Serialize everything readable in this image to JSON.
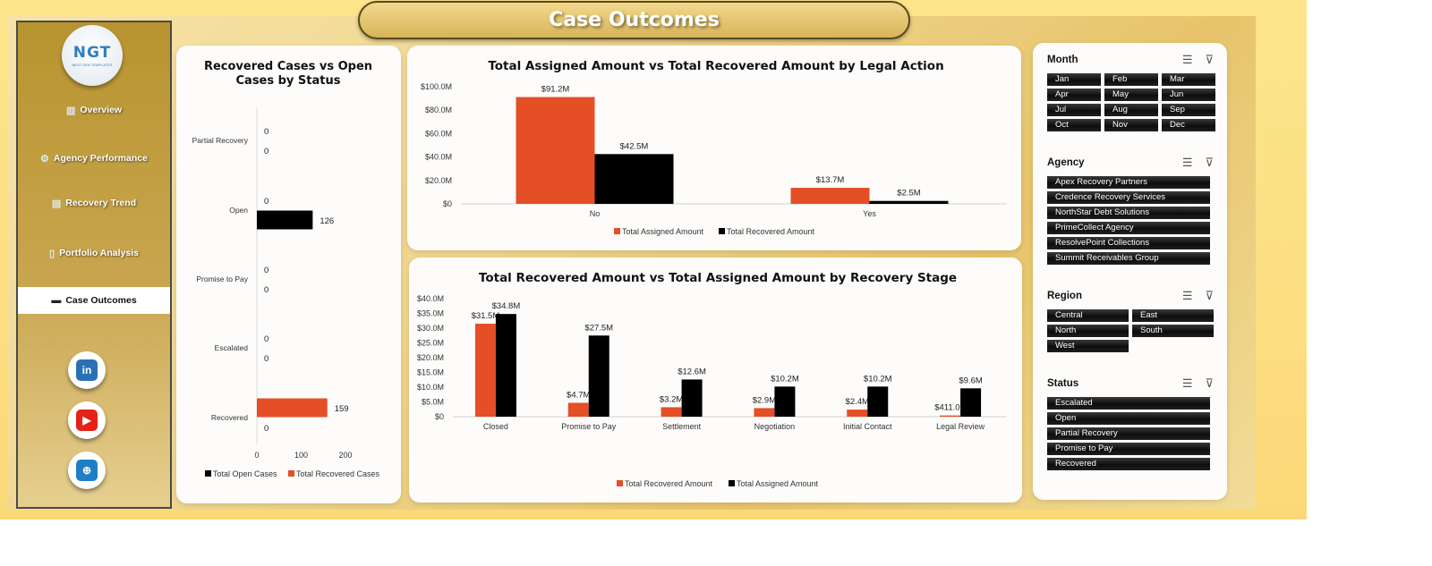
{
  "header": {
    "title": "Case Outcomes"
  },
  "logo": {
    "mark": "NGT",
    "tagline": "NEXT GEN TEMPLATES"
  },
  "sidebar": {
    "items": [
      {
        "label": "Overview",
        "icon": "bar-chart-icon",
        "active": false
      },
      {
        "label": "Agency Performance",
        "icon": "gear-icon",
        "active": false
      },
      {
        "label": "Recovery Trend",
        "icon": "trend-chart-icon",
        "active": false
      },
      {
        "label": "Portfolio Analysis",
        "icon": "document-icon",
        "active": false
      },
      {
        "label": "Case Outcomes",
        "icon": "folder-icon",
        "active": true
      }
    ],
    "social": [
      {
        "name": "linkedin-icon",
        "glyph": "in",
        "color": "#2a70b5"
      },
      {
        "name": "youtube-icon",
        "glyph": "▶",
        "color": "#e62117"
      },
      {
        "name": "website-icon",
        "glyph": "⊕",
        "color": "#1f7fc4"
      }
    ]
  },
  "colors": {
    "orange": "#e44f26",
    "black": "#000000"
  },
  "chart_data": [
    {
      "type": "bar",
      "orientation": "horizontal",
      "title": "Recovered Cases vs Open Cases by Status",
      "categories": [
        "Partial Recovery",
        "Open",
        "Promise to Pay",
        "Escalated",
        "Recovered"
      ],
      "series": [
        {
          "name": "Total Open Cases",
          "color": "#000000",
          "values": [
            0,
            126,
            0,
            0,
            0
          ]
        },
        {
          "name": "Total Recovered Cases",
          "color": "#e44f26",
          "values": [
            0,
            0,
            0,
            0,
            159
          ]
        }
      ],
      "xlim": [
        0,
        200
      ],
      "xticks": [
        "0",
        "100",
        "200"
      ],
      "legend": "bottom"
    },
    {
      "type": "bar",
      "title": "Total Assigned Amount vs Total Recovered Amount by Legal Action",
      "categories": [
        "No",
        "Yes"
      ],
      "series": [
        {
          "name": "Total Assigned Amount",
          "color": "#e44f26",
          "values": [
            91.2,
            13.7
          ],
          "labels": [
            "$91.2M",
            "$13.7M"
          ]
        },
        {
          "name": "Total Recovered Amount",
          "color": "#000000",
          "values": [
            42.5,
            2.5
          ],
          "labels": [
            "$42.5M",
            "$2.5M"
          ]
        }
      ],
      "ylim": [
        0,
        100
      ],
      "yticks": [
        "$0",
        "$20.0M",
        "$40.0M",
        "$60.0M",
        "$80.0M",
        "$100.0M"
      ],
      "legend": "bottom"
    },
    {
      "type": "bar",
      "title": "Total Recovered Amount vs Total Assigned Amount by Recovery Stage",
      "categories": [
        "Closed",
        "Promise to Pay",
        "Settlement",
        "Negotiation",
        "Initial Contact",
        "Legal Review"
      ],
      "series": [
        {
          "name": "Total Recovered Amount",
          "color": "#e44f26",
          "values": [
            31.5,
            4.7,
            3.2,
            2.9,
            2.4,
            0.411
          ],
          "labels": [
            "$31.5M",
            "$4.7M",
            "$3.2M",
            "$2.9M",
            "$2.4M",
            "$411.0K"
          ]
        },
        {
          "name": "Total Assigned Amount",
          "color": "#000000",
          "values": [
            34.8,
            27.5,
            12.6,
            10.2,
            10.2,
            9.6
          ],
          "labels": [
            "$34.8M",
            "$27.5M",
            "$12.6M",
            "$10.2M",
            "$10.2M",
            "$9.6M"
          ]
        }
      ],
      "ylim": [
        0,
        40
      ],
      "yticks": [
        "$0",
        "$5.0M",
        "$10.0M",
        "$15.0M",
        "$20.0M",
        "$25.0M",
        "$30.0M",
        "$35.0M",
        "$40.0M"
      ],
      "legend": "bottom"
    }
  ],
  "filters": {
    "month": {
      "title": "Month",
      "items": [
        "Jan",
        "Feb",
        "Mar",
        "Apr",
        "May",
        "Jun",
        "Jul",
        "Aug",
        "Sep",
        "Oct",
        "Nov",
        "Dec"
      ]
    },
    "agency": {
      "title": "Agency",
      "items": [
        "Apex Recovery Partners",
        "Credence Recovery Services",
        "NorthStar Debt Solutions",
        "PrimeCollect Agency",
        "ResolvePoint Collections",
        "Summit Receivables Group"
      ]
    },
    "region": {
      "title": "Region",
      "items": [
        "Central",
        "East",
        "North",
        "South",
        "West"
      ]
    },
    "status": {
      "title": "Status",
      "items": [
        "Escalated",
        "Open",
        "Partial Recovery",
        "Promise to Pay",
        "Recovered"
      ]
    }
  }
}
